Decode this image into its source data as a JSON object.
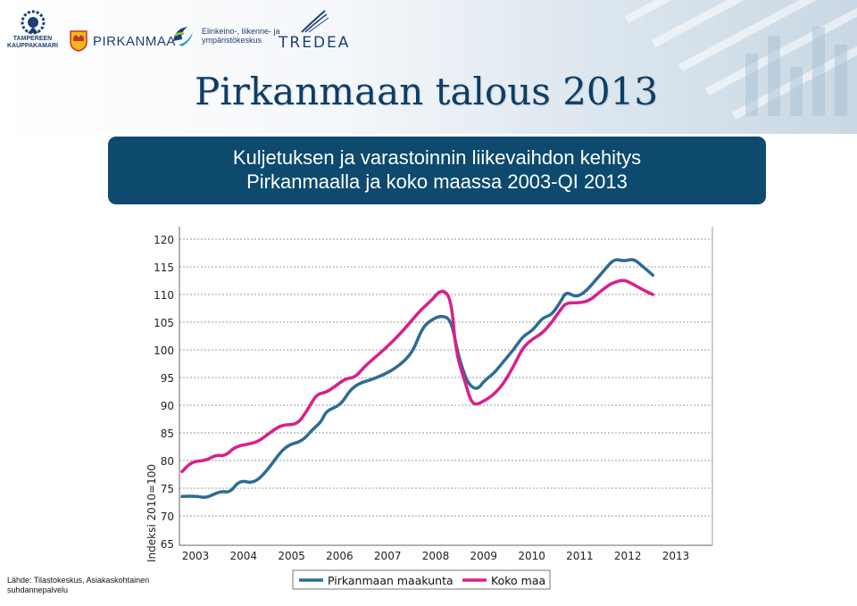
{
  "logos": {
    "chamber_line1": "TAMPEREEN",
    "chamber_line2": "KAUPPAKAMARI",
    "pirkanmaa": "PIRKANMAA",
    "ely_line1": "Elinkeino-, liikenne- ja",
    "ely_line2": "ympäristökeskus",
    "tredea": "TREDEA"
  },
  "header": {
    "title": "Pirkanmaan talous 2013"
  },
  "subtitle": {
    "line1": "Kuljetuksen ja varastoinnin liikevaihdon kehitys",
    "line2": "Pirkanmaalla ja koko maassa 2003-QI 2013"
  },
  "source": {
    "line1": "Lähde: Tilastokeskus, Asiakaskohtainen",
    "line2": "suhdannepalvelu"
  },
  "colors": {
    "pirkanmaa": "#2e6b94",
    "koko_maa": "#d81f8c",
    "title_box": "#0d4a6e"
  },
  "chart_data": {
    "type": "line",
    "ylabel": "Indeksi 2010=100",
    "ylim": [
      65,
      120
    ],
    "yticks": [
      120,
      115,
      110,
      105,
      100,
      95,
      90,
      85,
      80,
      75,
      70,
      65
    ],
    "xlim": [
      2003,
      2014.2
    ],
    "xticks": [
      "2003",
      "2004",
      "2005",
      "2006",
      "2007",
      "2008",
      "2009",
      "2010",
      "2011",
      "2012",
      "2013"
    ],
    "grid": "horizontal dotted",
    "legend": "bottom",
    "series": [
      {
        "name": "Pirkanmaan maakunta",
        "color": "#2e6b94",
        "points": [
          [
            2003.0,
            73.5
          ],
          [
            2003.3,
            73.6
          ],
          [
            2003.5,
            73.2
          ],
          [
            2003.8,
            74.5
          ],
          [
            2004.0,
            74.2
          ],
          [
            2004.2,
            76.5
          ],
          [
            2004.5,
            75.8
          ],
          [
            2004.8,
            78.5
          ],
          [
            2005.0,
            81.0
          ],
          [
            2005.2,
            82.8
          ],
          [
            2005.5,
            83.5
          ],
          [
            2005.7,
            85.5
          ],
          [
            2005.9,
            87.0
          ],
          [
            2006.0,
            89.0
          ],
          [
            2006.3,
            90.0
          ],
          [
            2006.5,
            92.8
          ],
          [
            2006.7,
            94.0
          ],
          [
            2006.9,
            94.5
          ],
          [
            2007.2,
            95.5
          ],
          [
            2007.5,
            97.0
          ],
          [
            2007.8,
            99.5
          ],
          [
            2008.0,
            104.0
          ],
          [
            2008.2,
            105.5
          ],
          [
            2008.4,
            106.2
          ],
          [
            2008.6,
            105.5
          ],
          [
            2008.75,
            99.0
          ],
          [
            2008.9,
            95.0
          ],
          [
            2009.0,
            93.5
          ],
          [
            2009.15,
            92.8
          ],
          [
            2009.3,
            94.5
          ],
          [
            2009.5,
            95.8
          ],
          [
            2009.7,
            98.0
          ],
          [
            2009.9,
            100.0
          ],
          [
            2010.1,
            102.5
          ],
          [
            2010.3,
            103.5
          ],
          [
            2010.5,
            105.8
          ],
          [
            2010.7,
            106.3
          ],
          [
            2010.9,
            109.0
          ],
          [
            2011.0,
            110.5
          ],
          [
            2011.2,
            109.5
          ],
          [
            2011.4,
            110.5
          ],
          [
            2011.6,
            112.5
          ],
          [
            2011.8,
            114.5
          ],
          [
            2012.0,
            116.5
          ],
          [
            2012.2,
            116.0
          ],
          [
            2012.4,
            116.5
          ],
          [
            2012.6,
            115.0
          ],
          [
            2012.8,
            113.5
          ]
        ]
      },
      {
        "name": "Koko maa",
        "color": "#d81f8c",
        "points": [
          [
            2003.0,
            78.0
          ],
          [
            2003.2,
            79.8
          ],
          [
            2003.5,
            80.0
          ],
          [
            2003.7,
            81.0
          ],
          [
            2003.9,
            80.8
          ],
          [
            2004.1,
            82.5
          ],
          [
            2004.4,
            83.0
          ],
          [
            2004.6,
            83.5
          ],
          [
            2004.9,
            85.5
          ],
          [
            2005.1,
            86.5
          ],
          [
            2005.4,
            86.5
          ],
          [
            2005.6,
            89.0
          ],
          [
            2005.8,
            92.0
          ],
          [
            2006.0,
            92.3
          ],
          [
            2006.2,
            93.5
          ],
          [
            2006.4,
            94.8
          ],
          [
            2006.6,
            95.0
          ],
          [
            2006.8,
            97.0
          ],
          [
            2007.0,
            98.5
          ],
          [
            2007.2,
            100.0
          ],
          [
            2007.5,
            102.5
          ],
          [
            2007.8,
            105.5
          ],
          [
            2008.0,
            107.5
          ],
          [
            2008.2,
            109.0
          ],
          [
            2008.4,
            111.0
          ],
          [
            2008.6,
            109.5
          ],
          [
            2008.7,
            99.5
          ],
          [
            2008.9,
            94.0
          ],
          [
            2009.0,
            91.0
          ],
          [
            2009.1,
            90.0
          ],
          [
            2009.3,
            90.8
          ],
          [
            2009.5,
            92.0
          ],
          [
            2009.7,
            94.0
          ],
          [
            2009.9,
            97.0
          ],
          [
            2010.1,
            100.5
          ],
          [
            2010.3,
            102.0
          ],
          [
            2010.5,
            103.0
          ],
          [
            2010.7,
            105.0
          ],
          [
            2010.9,
            107.5
          ],
          [
            2011.0,
            108.5
          ],
          [
            2011.3,
            108.5
          ],
          [
            2011.5,
            109.0
          ],
          [
            2011.7,
            110.5
          ],
          [
            2011.9,
            111.8
          ],
          [
            2012.0,
            112.2
          ],
          [
            2012.2,
            112.7
          ],
          [
            2012.4,
            111.8
          ],
          [
            2012.6,
            110.8
          ],
          [
            2012.8,
            110.0
          ]
        ]
      }
    ]
  }
}
